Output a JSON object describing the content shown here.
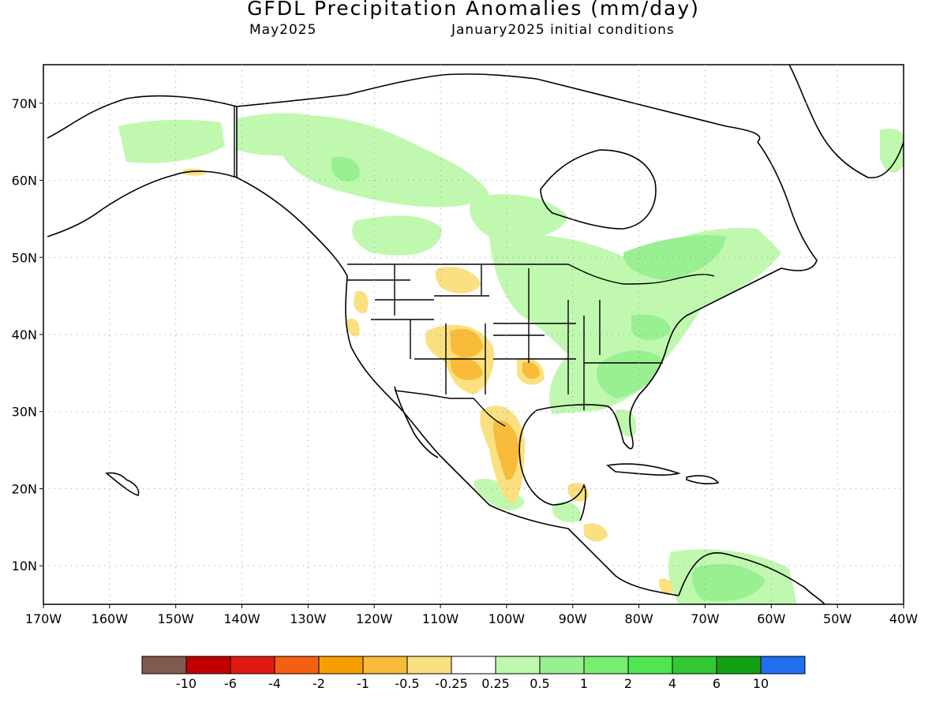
{
  "header": {
    "title": "GFDL Precipitation Anomalies (mm/day)",
    "valid_month": "May2025",
    "init_conditions": "January2025 initial conditions"
  },
  "map": {
    "lon_range": [
      -170,
      -40
    ],
    "lat_range": [
      5,
      75
    ],
    "grid": "dotted",
    "lon_ticks": [
      "170W",
      "160W",
      "150W",
      "140W",
      "130W",
      "120W",
      "110W",
      "100W",
      "90W",
      "80W",
      "70W",
      "60W",
      "50W",
      "40W"
    ],
    "lat_ticks": [
      "10N",
      "20N",
      "30N",
      "40N",
      "50N",
      "60N",
      "70N"
    ]
  },
  "legend": {
    "colors": [
      "#7f5a4f",
      "#c00000",
      "#e01a10",
      "#f56010",
      "#f5a000",
      "#f8bb3a",
      "#fae080",
      "#ffffff",
      "#c0f8b0",
      "#98f090",
      "#78ee70",
      "#50e650",
      "#32c832",
      "#14a014",
      "#2070f0"
    ],
    "labels": [
      "-10",
      "-6",
      "-4",
      "-2",
      "-1",
      "-0.5",
      "-0.25",
      "0.25",
      "0.5",
      "1",
      "2",
      "4",
      "6",
      "10"
    ]
  }
}
